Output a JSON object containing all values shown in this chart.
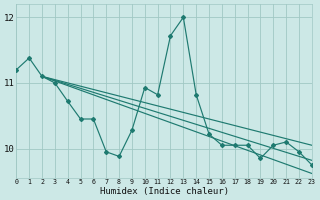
{
  "xlabel": "Humidex (Indice chaleur)",
  "xlim": [
    0,
    23
  ],
  "ylim": [
    9.55,
    12.2
  ],
  "yticks": [
    10,
    11,
    12
  ],
  "xticks": [
    0,
    1,
    2,
    3,
    4,
    5,
    6,
    7,
    8,
    9,
    10,
    11,
    12,
    13,
    14,
    15,
    16,
    17,
    18,
    19,
    20,
    21,
    22,
    23
  ],
  "bg_color": "#cce8e6",
  "grid_color": "#a0c8c4",
  "line_color": "#1e7a70",
  "main_series": [
    11.2,
    11.38,
    11.1,
    11.0,
    10.72,
    10.45,
    10.45,
    9.95,
    9.88,
    10.28,
    10.93,
    10.82,
    11.72,
    12.0,
    10.82,
    10.22,
    10.05,
    10.05,
    10.05,
    9.85,
    10.05,
    10.1,
    9.95,
    9.75
  ],
  "trend_a_start": 2,
  "trend_a_y0": 11.1,
  "trend_a_y1": 9.62,
  "trend_b_y0": 11.1,
  "trend_b_y1": 9.82,
  "trend_c_y0": 11.1,
  "trend_c_y1": 10.05
}
